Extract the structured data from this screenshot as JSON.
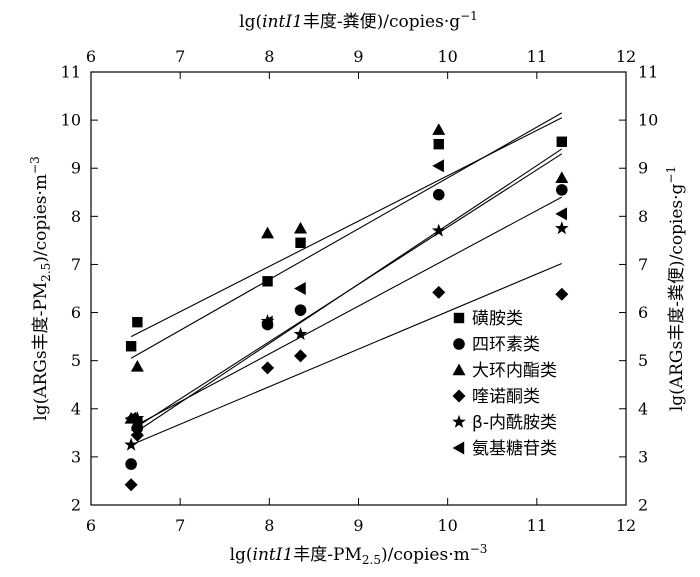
{
  "chart_data": {
    "type": "scatter",
    "x_label_bottom": {
      "prefix": "lg(",
      "italic": "intI1",
      "suffix": "丰度-PM",
      "sub": "2.5",
      "unit": ")/copies·m",
      "sup": "−3"
    },
    "x_label_top": {
      "prefix": "lg(",
      "italic": "intI1",
      "suffix": "丰度-粪便)/copies·g",
      "sup": "−1"
    },
    "y_label_left": {
      "prefix": "lg(ARGs丰度-PM",
      "sub": "2.5",
      "unit": ")/copies·m",
      "sup": "−3"
    },
    "y_label_right": {
      "text": "lg(ARGs丰度-粪便)/copies·g",
      "sup": "−1"
    },
    "xlim": [
      6,
      12
    ],
    "ylim": [
      2,
      11
    ],
    "x_ticks": [
      "6",
      "7",
      "8",
      "9",
      "10",
      "11",
      "12"
    ],
    "y_ticks": [
      "2",
      "3",
      "4",
      "5",
      "6",
      "7",
      "8",
      "9",
      "10",
      "11"
    ],
    "series": [
      {
        "name": "磺胺类",
        "marker": "square",
        "points": [
          [
            6.45,
            5.3
          ],
          [
            6.52,
            5.8
          ],
          [
            7.98,
            6.65
          ],
          [
            8.35,
            7.45
          ],
          [
            9.9,
            9.5
          ],
          [
            11.28,
            9.55
          ]
        ],
        "fit": [
          [
            6.45,
            5.5
          ],
          [
            11.28,
            10.05
          ]
        ]
      },
      {
        "name": "四环素类",
        "marker": "circle",
        "points": [
          [
            6.45,
            2.85
          ],
          [
            6.52,
            3.6
          ],
          [
            7.98,
            5.75
          ],
          [
            8.35,
            6.05
          ],
          [
            9.9,
            8.45
          ],
          [
            11.28,
            8.55
          ]
        ],
        "fit": [
          [
            6.45,
            3.55
          ],
          [
            11.28,
            9.3
          ]
        ]
      },
      {
        "name": "大环内酯类",
        "marker": "triangle-up",
        "points": [
          [
            6.45,
            3.8
          ],
          [
            6.52,
            4.88
          ],
          [
            7.98,
            7.65
          ],
          [
            8.35,
            7.75
          ],
          [
            9.9,
            9.8
          ],
          [
            11.28,
            8.8
          ]
        ],
        "fit": [
          [
            6.45,
            5.05
          ],
          [
            11.28,
            10.15
          ]
        ]
      },
      {
        "name": "喹诺酮类",
        "marker": "diamond",
        "points": [
          [
            6.45,
            2.42
          ],
          [
            6.52,
            3.45
          ],
          [
            7.98,
            4.85
          ],
          [
            8.35,
            5.1
          ],
          [
            9.9,
            6.42
          ],
          [
            11.28,
            6.38
          ]
        ],
        "fit": [
          [
            6.45,
            3.25
          ],
          [
            11.28,
            7.02
          ]
        ]
      },
      {
        "name": "β-内酰胺类",
        "marker": "star",
        "points": [
          [
            6.45,
            3.25
          ],
          [
            6.52,
            3.8
          ],
          [
            7.98,
            5.82
          ],
          [
            8.35,
            5.55
          ],
          [
            9.9,
            7.7
          ],
          [
            11.28,
            7.75
          ]
        ],
        "fit": [
          [
            6.45,
            3.6
          ],
          [
            11.28,
            8.4
          ]
        ]
      },
      {
        "name": "氨基糖苷类",
        "marker": "triangle-left",
        "points": [
          [
            6.45,
            3.8
          ],
          [
            6.52,
            3.72
          ],
          [
            7.98,
            5.8
          ],
          [
            8.35,
            6.5
          ],
          [
            9.9,
            9.05
          ],
          [
            11.28,
            8.05
          ]
        ],
        "fit": [
          [
            6.45,
            3.45
          ],
          [
            11.28,
            9.4
          ]
        ]
      }
    ],
    "legend_position": "bottom-right",
    "grid": false
  }
}
